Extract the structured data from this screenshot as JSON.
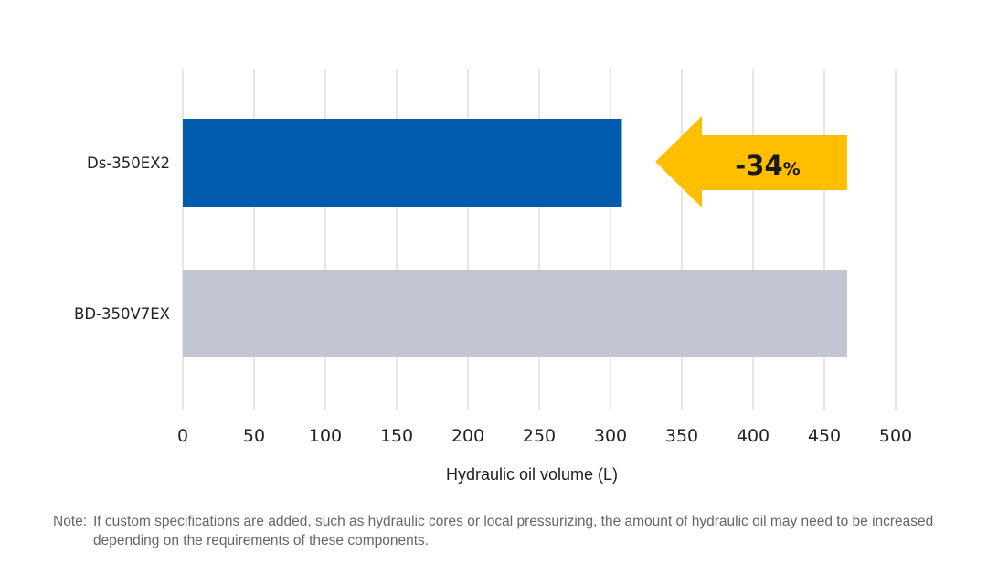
{
  "chart_data": {
    "type": "bar",
    "orientation": "horizontal",
    "title": "",
    "categories": [
      "Ds-350EX2",
      "BD-350V7EX"
    ],
    "values": [
      308,
      466
    ],
    "colors": [
      "#005bac",
      "#c1c6d2"
    ],
    "xlabel": "Hydraulic oil volume (L)",
    "ylabel": "",
    "xlim": [
      0,
      500
    ],
    "xticks": [
      0,
      50,
      100,
      150,
      200,
      250,
      300,
      350,
      400,
      450,
      500
    ],
    "grid": true,
    "annotation": {
      "number": "-34",
      "unit": "%",
      "color": "#ffbf00"
    }
  },
  "note": {
    "label": "Note:",
    "text": "If custom specifications are added, such as hydraulic cores or local pressurizing, the amount of hydraulic oil may need to be increased depending on the requirements of these components."
  }
}
